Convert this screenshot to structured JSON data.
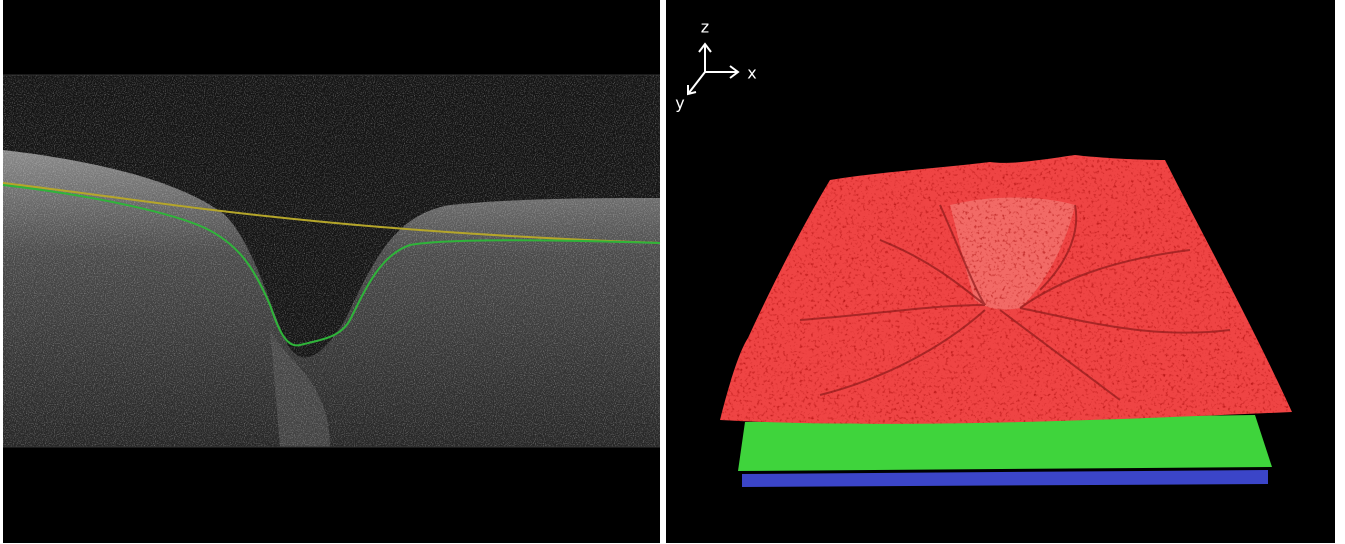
{
  "axes_gizmo": {
    "z": "z",
    "x": "x",
    "y": "y"
  }
}
